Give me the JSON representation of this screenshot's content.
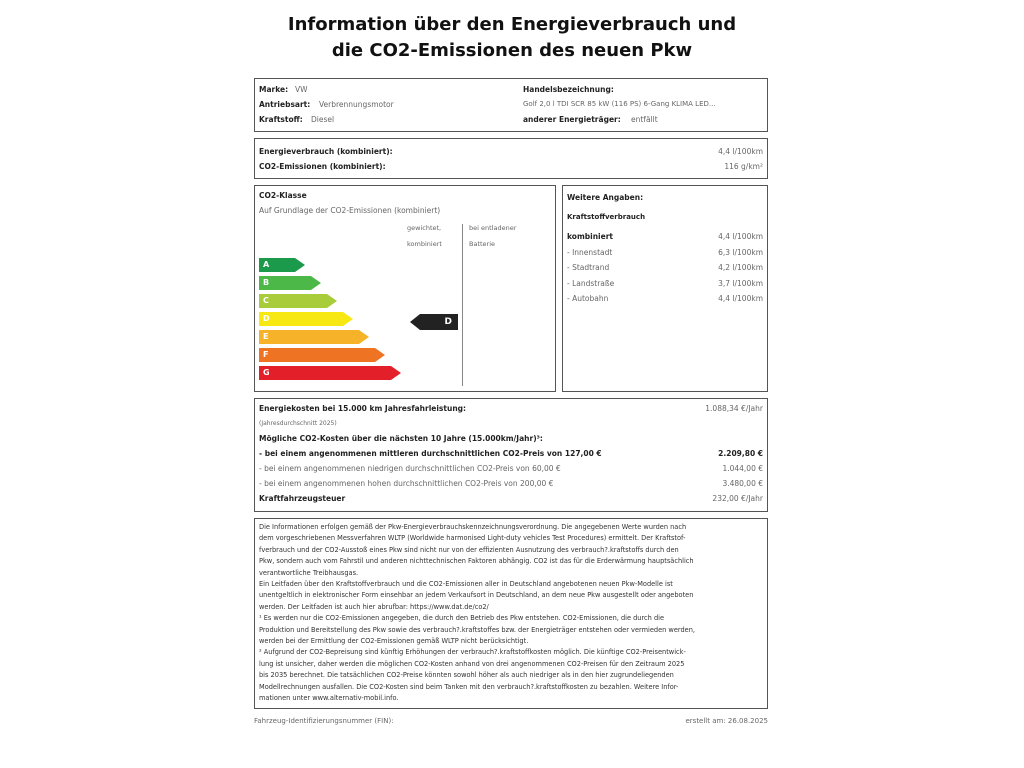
{
  "title": {
    "line1": "Information über den Energieverbrauch und",
    "line2": "die CO2-Emissionen des neuen Pkw"
  },
  "vehicle": {
    "marke_label": "Marke:",
    "marke": "VW",
    "antrieb_label": "Antriebsart:",
    "antrieb": "Verbrennungsmotor",
    "kraftstoff_label": "Kraftstoff:",
    "kraftstoff": "Diesel",
    "handel_label": "Handelsbezeichnung:",
    "handel": "Golf 2,0 l TDI SCR 85 kW (116 PS) 6-Gang KLIMA LED...",
    "anderer_label": "anderer Energieträger:",
    "anderer": "entfällt"
  },
  "consumption": {
    "energy_label": "Energieverbrauch (kombiniert):",
    "energy": "4,4 l/100km",
    "co2_label": "CO2-Emissionen (kombiniert):",
    "co2": "116 g/km²"
  },
  "co2class": {
    "title": "CO2-Klasse",
    "subtitle": "Auf Grundlage der CO2-Emissionen (kombiniert)",
    "col1a": "gewichtet,",
    "col1b": "kombiniert",
    "col2a": "bei entladener",
    "col2b": "Batterie",
    "classes": [
      {
        "label": "A",
        "color": "#1a9a4a"
      },
      {
        "label": "B",
        "color": "#4cb848"
      },
      {
        "label": "C",
        "color": "#a8cc3a"
      },
      {
        "label": "D",
        "color": "#f7e814"
      },
      {
        "label": "E",
        "color": "#f6b32a"
      },
      {
        "label": "F",
        "color": "#ee7424"
      },
      {
        "label": "G",
        "color": "#e3202a"
      }
    ],
    "current": "D"
  },
  "further": {
    "title": "Weitere Angaben:",
    "sub": "Kraftstoffverbrauch",
    "rows": [
      {
        "label": "kombiniert",
        "value": "4,4 l/100km"
      },
      {
        "label": "- Innenstadt",
        "value": "6,3 l/100km"
      },
      {
        "label": "- Stadtrand",
        "value": "4,2 l/100km"
      },
      {
        "label": "- Landstraße",
        "value": "3,7 l/100km"
      },
      {
        "label": "- Autobahn",
        "value": "4,4 l/100km"
      }
    ]
  },
  "costs": {
    "energy_label": "Energiekosten bei 15.000 km Jahresfahrleistung:",
    "energy": "1.088,34 €/Jahr",
    "energy_note": "(Jahresdurchschnitt 2025)",
    "co2_title": "Mögliche CO2-Kosten über die nächsten 10 Jahre (15.000km/Jahr)³:",
    "mid_label": "- bei einem angenommenen mittleren durchschnittlichen CO2-Preis von 127,00 €",
    "mid": "2.209,80 €",
    "low_label": "- bei einem angenommenen niedrigen durchschnittlichen CO2-Preis von 60,00 €",
    "low": "1.044,00 €",
    "high_label": "- bei einem angenommenen hohen durchschnittlichen CO2-Preis von 200,00 €",
    "high": "3.480,00 €",
    "tax_label": "Kraftfahrzeugsteuer",
    "tax": "232,00 €/Jahr"
  },
  "footnotes": [
    "Die Informationen erfolgen gemäß der Pkw-Energieverbrauchskennzeichnungsverordnung. Die angegebenen Werte wurden nach",
    "dem vorgeschriebenen Messverfahren WLTP (Worldwide harmonised Light-duty vehicles Test Procedures) ermittelt. Der Kraftstof-",
    "fverbrauch und der CO2-Ausstoß eines Pkw sind nicht nur von der effizienten Ausnutzung des verbrauch?.kraftstoffs durch den",
    "Pkw, sondern auch vom Fahrstil und anderen nichttechnischen Faktoren abhängig. CO2 ist das für die Erderwärmung hauptsächlich",
    "verantwortliche Treibhausgas.",
    "Ein Leitfaden über den Kraftstoffverbrauch und die CO2-Emissionen aller in Deutschland angebotenen neuen Pkw-Modelle ist",
    "unentgeltlich in elektronischer Form einsehbar an jedem Verkaufsort in Deutschland, an dem neue Pkw ausgestellt oder angeboten",
    "werden. Der Leitfaden ist auch hier abrufbar: https://www.dat.de/co2/",
    "¹ Es werden nur die CO2-Emissionen angegeben, die durch den Betrieb des Pkw entstehen. CO2-Emissionen, die durch die",
    "Produktion und Bereitstellung des Pkw sowie des verbrauch?.kraftstoffes bzw. der Energieträger entstehen oder vermieden werden,",
    "werden bei der Ermittlung der CO2-Emissionen gemäß WLTP nicht berücksichtigt.",
    "² Aufgrund der CO2-Bepreisung sind künftig Erhöhungen der verbrauch?.kraftstoffkosten möglich. Die künftige CO2-Preisentwick-",
    "lung ist unsicher, daher werden die möglichen CO2-Kosten anhand von drei angenommenen CO2-Preisen für den Zeitraum 2025",
    "bis 2035 berechnet. Die tatsächlichen CO2-Preise könnten sowohl höher als auch niedriger als in den hier zugrundeliegenden",
    "Modellrechnungen ausfallen. Die CO2-Kosten sind beim Tanken mit den verbrauch?.kraftstoffkosten zu bezahlen. Weitere Infor-",
    "mationen unter www.alternativ-mobil.info."
  ],
  "footer": {
    "fin_label": "Fahrzeug-Identifizierungsnummer (FIN):",
    "created": "erstellt am: 26.08.2025"
  }
}
